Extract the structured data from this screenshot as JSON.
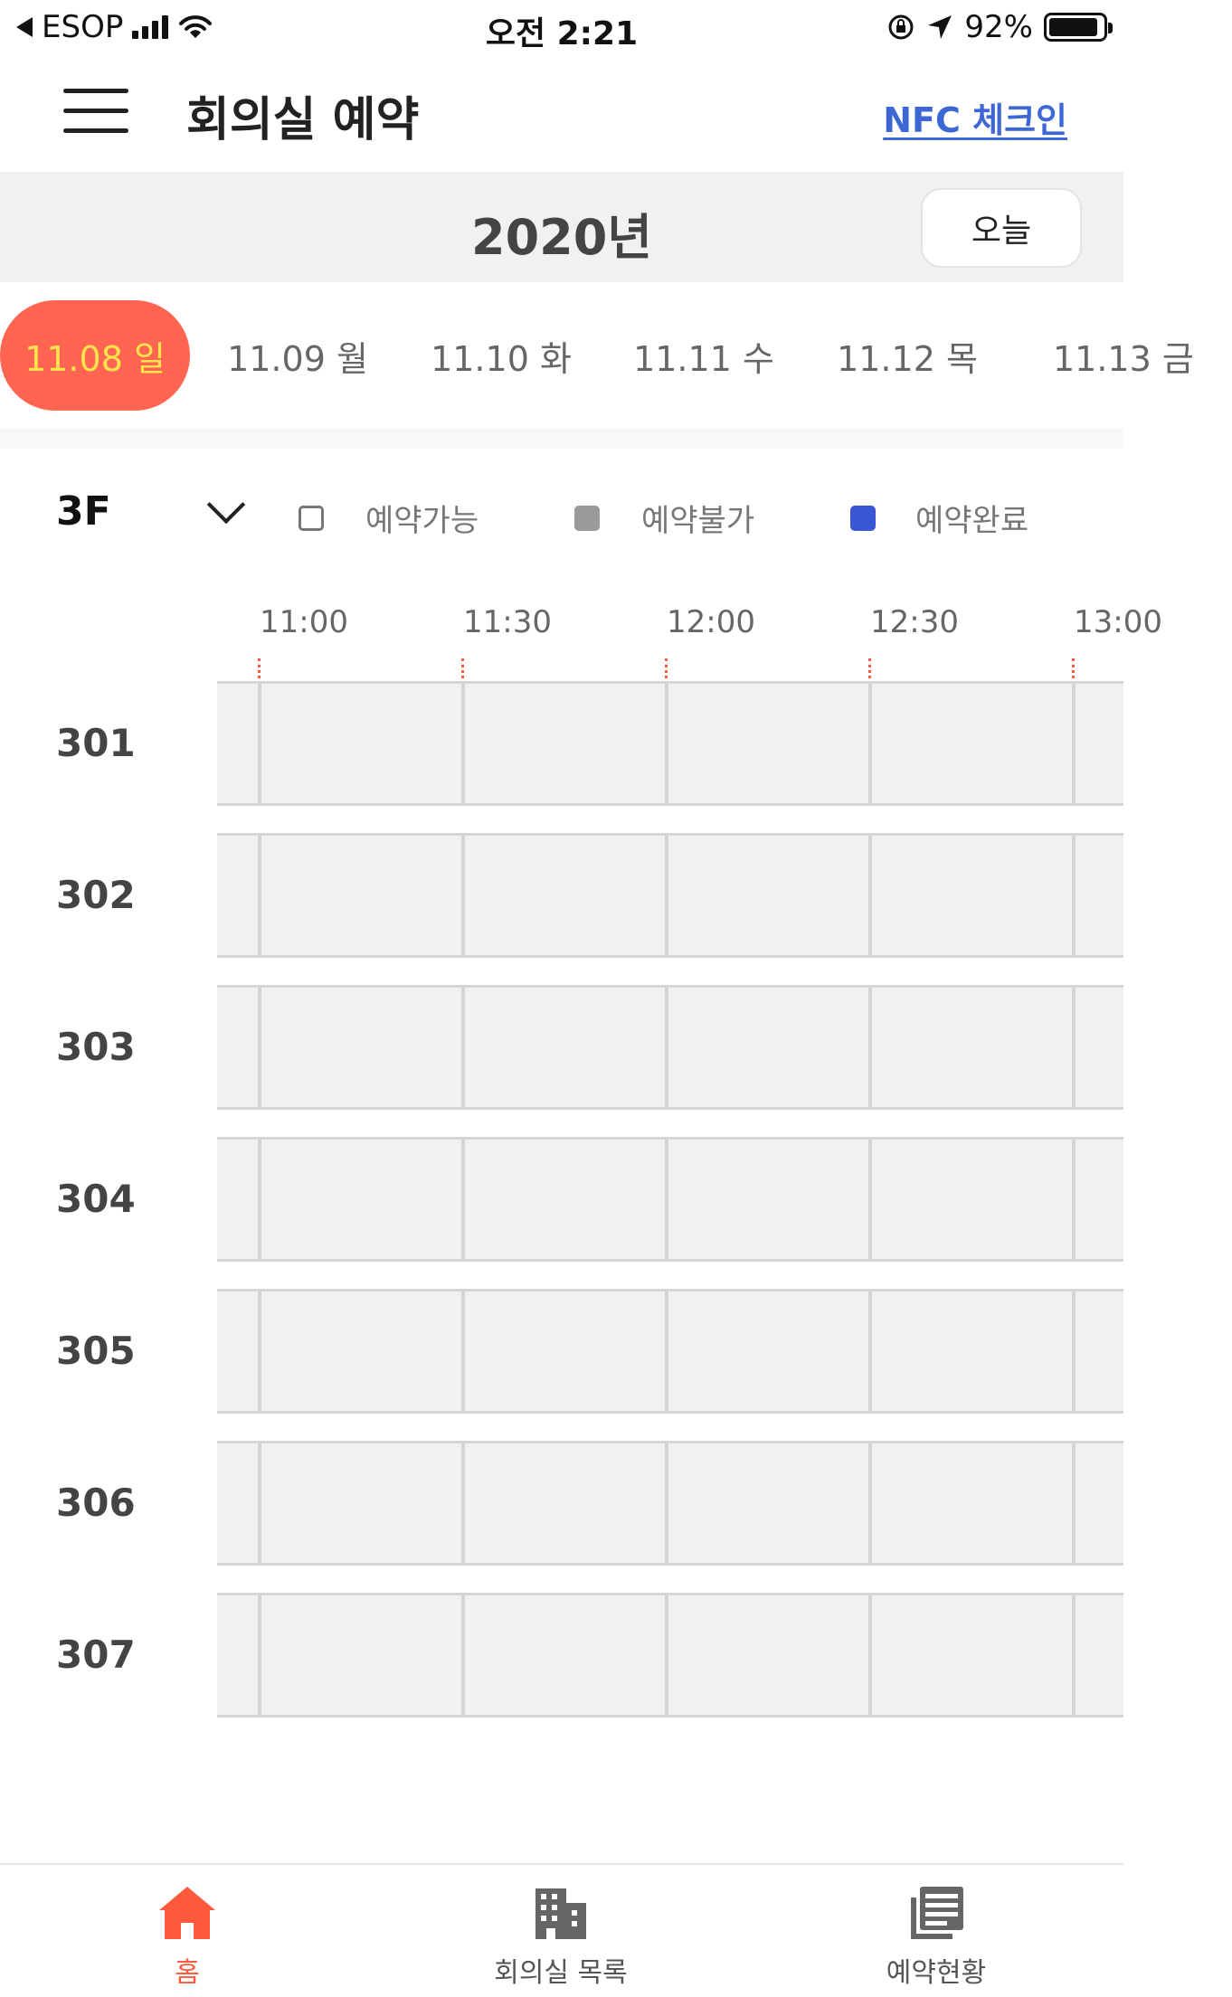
{
  "status_bar": {
    "carrier": "ESOP",
    "time": "오전 2:21",
    "battery": "92%"
  },
  "header": {
    "title": "회의실 예약",
    "nfc_link": "NFC 체크인"
  },
  "year_bar": {
    "year": "2020년",
    "today_button": "오늘"
  },
  "dates": [
    {
      "label": "11.08 일",
      "selected": true
    },
    {
      "label": "11.09 월",
      "selected": false
    },
    {
      "label": "11.10 화",
      "selected": false
    },
    {
      "label": "11.11 수",
      "selected": false
    },
    {
      "label": "11.12 목",
      "selected": false
    },
    {
      "label": "11.13 금",
      "selected": false
    }
  ],
  "filter": {
    "floor": "3F"
  },
  "legend": [
    {
      "label": "예약가능",
      "color": "#ffffff"
    },
    {
      "label": "예약불가",
      "color": "#9a9a9a"
    },
    {
      "label": "예약완료",
      "color": "#3a56d4"
    }
  ],
  "times": [
    "11:00",
    "11:30",
    "12:00",
    "12:30",
    "13:00"
  ],
  "rooms": [
    "301",
    "302",
    "303",
    "304",
    "305",
    "306",
    "307"
  ],
  "tabs": [
    {
      "label": "홈",
      "icon": "home-icon",
      "active": true
    },
    {
      "label": "회의실 목록",
      "icon": "building-icon",
      "active": false
    },
    {
      "label": "예약현황",
      "icon": "list-icon",
      "active": false
    }
  ],
  "colors": {
    "accent": "#ff6550",
    "selected_date_text": "#ffe34d",
    "link": "#3e67d6"
  }
}
